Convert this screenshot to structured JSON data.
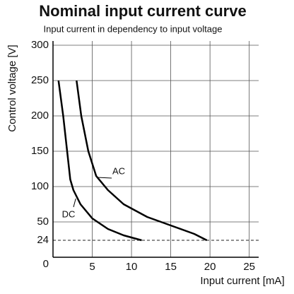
{
  "chart_data": {
    "type": "line",
    "title": "Nominal input current curve",
    "subtitle": "Input current in dependency to input voltage",
    "x_label": "Input current [mA]",
    "y_label": "Control voltage [V]",
    "xlim": [
      0,
      26.2
    ],
    "ylim": [
      0,
      306
    ],
    "xticks": [
      5,
      10,
      15,
      20,
      25
    ],
    "yticks": [
      0,
      50,
      100,
      150,
      200,
      250,
      300
    ],
    "reference_y": 24,
    "grid": true,
    "series": [
      {
        "name": "AC",
        "color": "#000000",
        "x": [
          3,
          3.6,
          4.5,
          5.5,
          7,
          9,
          12,
          15,
          18,
          19.6
        ],
        "values": [
          250,
          200,
          150,
          115,
          95,
          75,
          57,
          45,
          33,
          24
        ]
      },
      {
        "name": "DC",
        "color": "#000000",
        "x": [
          0.7,
          1.3,
          1.8,
          2.2,
          2.6,
          3.5,
          5,
          7,
          9,
          11.3
        ],
        "values": [
          250,
          200,
          150,
          110,
          95,
          75,
          55,
          40,
          31,
          24
        ]
      }
    ]
  }
}
